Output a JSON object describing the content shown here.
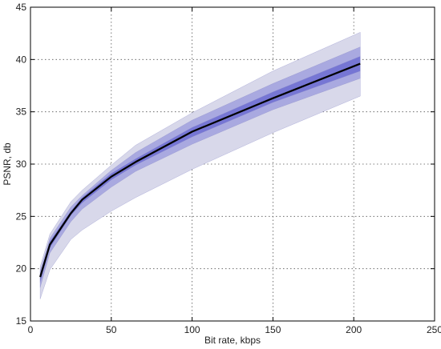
{
  "chart_data": {
    "type": "area",
    "xlabel": "Bit rate, kbps",
    "ylabel": "PSNR, db",
    "xlim": [
      0,
      250
    ],
    "ylim": [
      15,
      45
    ],
    "xticks": [
      0,
      50,
      100,
      150,
      200,
      250
    ],
    "yticks": [
      15,
      20,
      25,
      30,
      35,
      40,
      45
    ],
    "grid": true,
    "x": [
      6,
      12,
      25,
      32,
      50,
      65,
      100,
      150,
      204
    ],
    "series": [
      {
        "role": "band",
        "band_level": "outer",
        "color": "#d8d8ea",
        "lower": [
          17.1,
          19.9,
          22.8,
          23.7,
          25.5,
          26.8,
          29.5,
          33.0,
          36.5
        ],
        "upper": [
          20.2,
          23.3,
          26.4,
          27.5,
          29.9,
          31.8,
          34.9,
          38.9,
          42.6
        ]
      },
      {
        "role": "band",
        "band_level": "middle",
        "color": "#a9a9e0",
        "lower": [
          18.2,
          21.5,
          24.5,
          25.7,
          27.8,
          29.3,
          31.9,
          35.2,
          38.2
        ],
        "upper": [
          19.8,
          22.9,
          25.9,
          27.0,
          29.4,
          31.1,
          34.2,
          37.7,
          41.2
        ]
      },
      {
        "role": "band",
        "band_level": "inner",
        "color": "#7676d4",
        "lower": [
          18.7,
          22.0,
          25.1,
          26.3,
          28.5,
          29.9,
          32.6,
          35.9,
          38.9
        ],
        "upper": [
          19.5,
          22.6,
          25.5,
          26.8,
          29.1,
          30.5,
          33.5,
          36.9,
          40.3
        ]
      },
      {
        "role": "line",
        "color": "#000000",
        "values": [
          19.2,
          22.3,
          25.3,
          26.6,
          28.8,
          30.2,
          33.1,
          36.3,
          39.6
        ]
      }
    ]
  }
}
